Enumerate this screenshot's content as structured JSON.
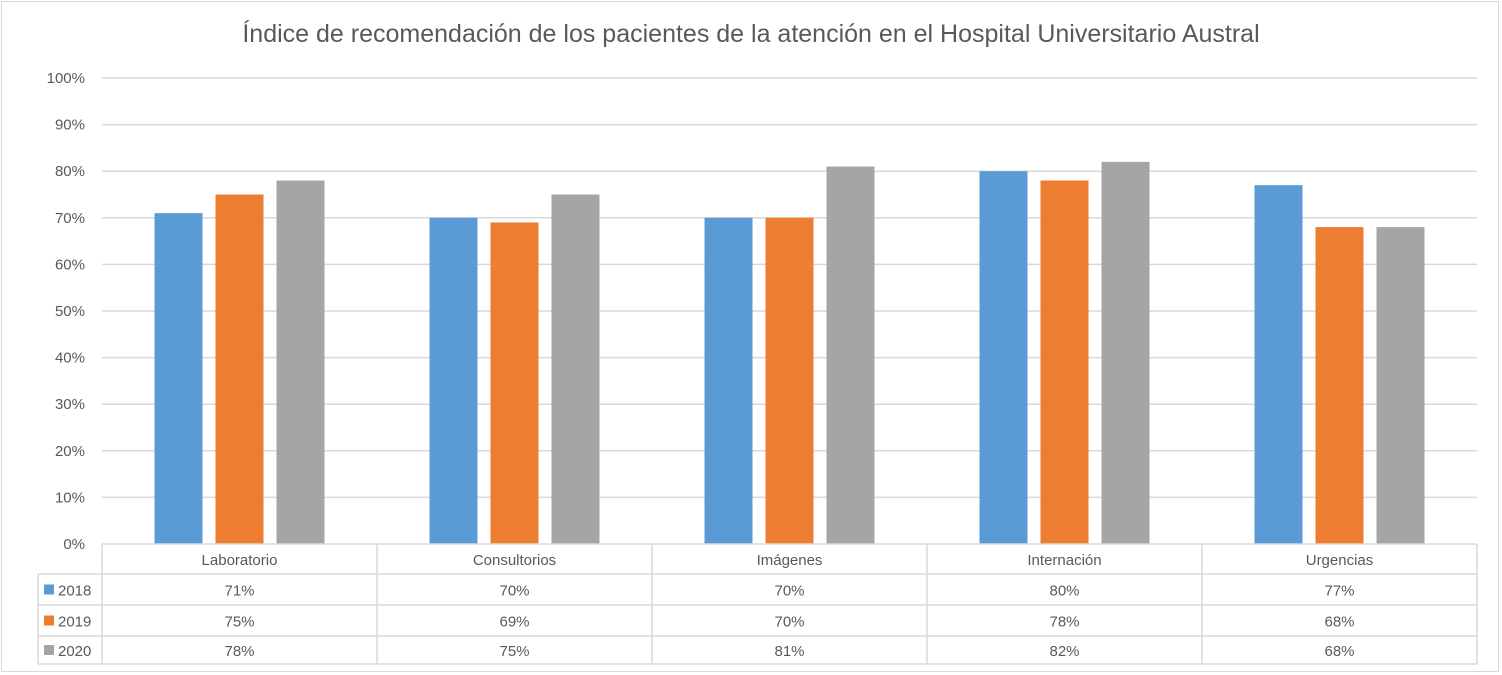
{
  "chart_data": {
    "type": "bar",
    "title": "Índice de recomendación de los pacientes de la atención en el Hospital Universitario Austral",
    "xlabel": "",
    "ylabel": "",
    "ylim": [
      0,
      100
    ],
    "yticks": [
      "0%",
      "10%",
      "20%",
      "30%",
      "40%",
      "50%",
      "60%",
      "70%",
      "80%",
      "90%",
      "100%"
    ],
    "grid": true,
    "legend": "data-table-left",
    "categories": [
      "Laboratorio",
      "Consultorios",
      "Imágenes",
      "Internación",
      "Urgencias"
    ],
    "series": [
      {
        "name": "2018",
        "color": "#5b9bd5",
        "values": [
          71,
          70,
          70,
          80,
          77
        ],
        "labels": [
          "71%",
          "70%",
          "70%",
          "80%",
          "77%"
        ]
      },
      {
        "name": "2019",
        "color": "#ed7d31",
        "values": [
          75,
          69,
          70,
          78,
          68
        ],
        "labels": [
          "75%",
          "69%",
          "70%",
          "78%",
          "68%"
        ]
      },
      {
        "name": "2020",
        "color": "#a5a5a5",
        "values": [
          78,
          75,
          81,
          82,
          68
        ],
        "labels": [
          "78%",
          "75%",
          "81%",
          "82%",
          "68%"
        ]
      }
    ]
  }
}
